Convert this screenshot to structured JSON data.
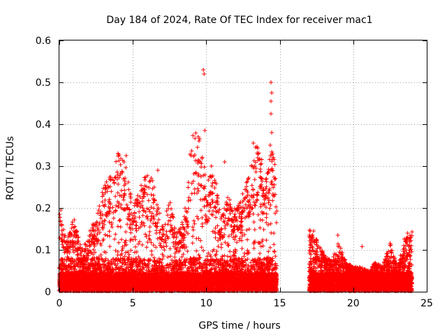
{
  "chart_data": {
    "type": "scatter",
    "title": "Day 184 of 2024, Rate Of TEC Index for receiver mac1",
    "xlabel": "GPS time / hours",
    "ylabel": "ROTI / TECUs",
    "xlim": [
      0,
      25
    ],
    "ylim": [
      0,
      0.6
    ],
    "xticks": [
      0,
      5,
      10,
      15,
      20,
      25
    ],
    "yticks": [
      0,
      0.1,
      0.2,
      0.3,
      0.4,
      0.5,
      0.6
    ],
    "xtick_labels": [
      "0",
      "5",
      "10",
      "15",
      "20",
      "25"
    ],
    "ytick_labels": [
      "0",
      "0.1",
      "0.2",
      "0.3",
      "0.4",
      "0.5",
      "0.6"
    ],
    "grid": true,
    "marker": "+",
    "color": "#ff0000",
    "series": [
      {
        "name": "ROTI",
        "segments": [
          {
            "x_start": 0.0,
            "x_end": 14.8,
            "note": "dense coverage, baseline roughly 0 to 0.05 TECU/s"
          },
          {
            "x_start": 17.0,
            "x_end": 24.0,
            "note": "dense coverage, baseline roughly 0 to 0.04 TECU/s"
          }
        ],
        "envelope": {
          "x": [
            0.0,
            0.5,
            1.0,
            1.5,
            2.0,
            2.5,
            3.0,
            3.5,
            4.0,
            4.5,
            5.0,
            5.5,
            6.0,
            6.5,
            7.0,
            7.5,
            8.0,
            8.5,
            9.0,
            9.5,
            10.0,
            10.5,
            11.0,
            11.5,
            12.0,
            12.5,
            13.0,
            13.5,
            14.0,
            14.5,
            14.8,
            17.0,
            17.5,
            18.0,
            18.5,
            19.0,
            19.5,
            20.0,
            20.5,
            21.0,
            21.5,
            22.0,
            22.5,
            23.0,
            23.5,
            24.0
          ],
          "y": [
            0.19,
            0.12,
            0.18,
            0.1,
            0.14,
            0.18,
            0.25,
            0.28,
            0.33,
            0.32,
            0.2,
            0.25,
            0.29,
            0.26,
            0.16,
            0.22,
            0.15,
            0.18,
            0.37,
            0.39,
            0.27,
            0.3,
            0.19,
            0.23,
            0.2,
            0.24,
            0.3,
            0.36,
            0.28,
            0.36,
            0.26,
            0.15,
            0.13,
            0.09,
            0.08,
            0.12,
            0.07,
            0.06,
            0.06,
            0.05,
            0.07,
            0.06,
            0.12,
            0.06,
            0.13,
            0.14
          ]
        },
        "notable_points": [
          {
            "x": 9.8,
            "y": 0.53
          },
          {
            "x": 9.85,
            "y": 0.52
          },
          {
            "x": 14.4,
            "y": 0.5
          },
          {
            "x": 14.45,
            "y": 0.475
          },
          {
            "x": 14.4,
            "y": 0.455
          },
          {
            "x": 14.4,
            "y": 0.425
          },
          {
            "x": 14.45,
            "y": 0.38
          },
          {
            "x": 9.9,
            "y": 0.385
          },
          {
            "x": 9.45,
            "y": 0.37
          },
          {
            "x": 9.55,
            "y": 0.365
          },
          {
            "x": 9.5,
            "y": 0.36
          },
          {
            "x": 9.4,
            "y": 0.345
          },
          {
            "x": 4.0,
            "y": 0.33
          },
          {
            "x": 4.55,
            "y": 0.325
          },
          {
            "x": 4.4,
            "y": 0.31
          },
          {
            "x": 13.2,
            "y": 0.355
          },
          {
            "x": 13.35,
            "y": 0.345
          },
          {
            "x": 14.35,
            "y": 0.35
          },
          {
            "x": 14.5,
            "y": 0.33
          },
          {
            "x": 6.7,
            "y": 0.29
          },
          {
            "x": 10.35,
            "y": 0.3
          },
          {
            "x": 11.25,
            "y": 0.31
          },
          {
            "x": 0.1,
            "y": 0.195
          },
          {
            "x": 20.6,
            "y": 0.108
          },
          {
            "x": 24.0,
            "y": 0.143
          },
          {
            "x": 17.3,
            "y": 0.145
          },
          {
            "x": 18.95,
            "y": 0.135
          },
          {
            "x": 23.7,
            "y": 0.14
          }
        ]
      }
    ]
  }
}
